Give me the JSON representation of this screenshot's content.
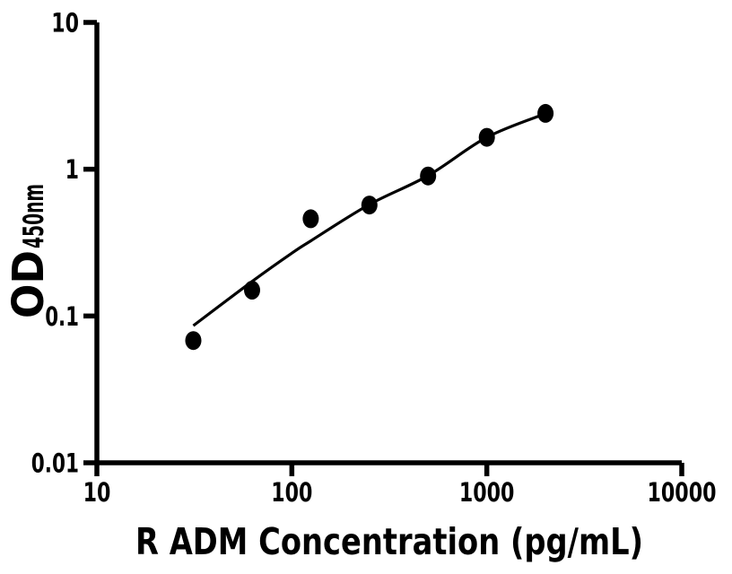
{
  "figure": {
    "background_color": "#ffffff",
    "ink_color": "#000000"
  },
  "chart_data": {
    "type": "scatter",
    "title": "",
    "xlabel": "R ADM Concentration (pg/mL)",
    "ylabel_main": "OD",
    "ylabel_subscript": "450nm",
    "x_scale": "log10",
    "y_scale": "log10",
    "xlim": [
      10,
      10000
    ],
    "ylim": [
      0.01,
      10
    ],
    "x_tick_values": [
      10,
      100,
      1000,
      10000
    ],
    "x_tick_labels": [
      "10",
      "100",
      "1000",
      "10000"
    ],
    "y_tick_values": [
      0.01,
      0.1,
      1,
      10
    ],
    "y_tick_labels": [
      "0.01",
      "0.1",
      "1",
      "10"
    ],
    "grid": false,
    "legend": "none",
    "marker": "filled-ellipse",
    "marker_color": "#000000",
    "line_color": "#000000",
    "series": [
      {
        "name": "standard-points",
        "type": "scatter",
        "points": [
          {
            "x": 31.25,
            "y": 0.068
          },
          {
            "x": 62.5,
            "y": 0.15
          },
          {
            "x": 125,
            "y": 0.46
          },
          {
            "x": 250,
            "y": 0.57
          },
          {
            "x": 500,
            "y": 0.9
          },
          {
            "x": 1000,
            "y": 1.65
          },
          {
            "x": 2000,
            "y": 2.4
          }
        ]
      },
      {
        "name": "fitted-curve",
        "type": "line",
        "points": [
          {
            "x": 31.25,
            "y": 0.086
          },
          {
            "x": 62.5,
            "y": 0.172
          },
          {
            "x": 100,
            "y": 0.268
          },
          {
            "x": 125,
            "y": 0.325
          },
          {
            "x": 250,
            "y": 0.575
          },
          {
            "x": 500,
            "y": 0.905
          },
          {
            "x": 1000,
            "y": 1.65
          },
          {
            "x": 2000,
            "y": 2.39
          }
        ]
      }
    ]
  }
}
